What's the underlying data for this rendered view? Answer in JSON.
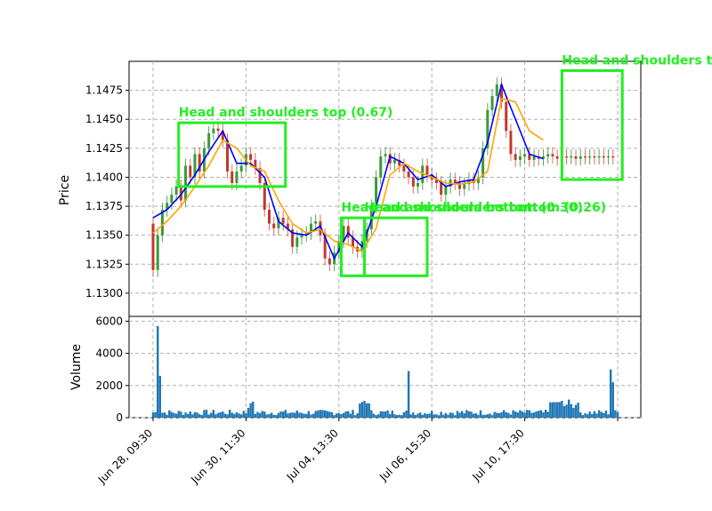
{
  "chart_data": [
    {
      "type": "candlestick",
      "ylabel": "Price",
      "ylim": [
        1.128,
        1.15
      ],
      "yticks": [
        "1.1300",
        "1.1325",
        "1.1350",
        "1.1375",
        "1.1400",
        "1.1425",
        "1.1450",
        "1.1475"
      ],
      "grid": true,
      "series": [
        {
          "name": "",
          "role": "close",
          "color": "#8a7a2a",
          "x": [
            0,
            1,
            2,
            3,
            4,
            5,
            6,
            7,
            8,
            9,
            10,
            11,
            12,
            13,
            14,
            15,
            16,
            17,
            18,
            19,
            20,
            21,
            22,
            23,
            24,
            25,
            26,
            27,
            28,
            29,
            30,
            31,
            32,
            33,
            34,
            35,
            36,
            37,
            38,
            39,
            40,
            41,
            42,
            43,
            44,
            45,
            46,
            47,
            48,
            49,
            50,
            51,
            52,
            53,
            54,
            55,
            56,
            57,
            58,
            59,
            60,
            61,
            62,
            63,
            64,
            65,
            66,
            67,
            68,
            69,
            70,
            71,
            72,
            73,
            74,
            75,
            76,
            77,
            78,
            79,
            80,
            81,
            82,
            83,
            84,
            85,
            86,
            87,
            88,
            89,
            90,
            91,
            92,
            93,
            94,
            95,
            96,
            97,
            98,
            99,
            100
          ],
          "values": [
            1.136,
            1.132,
            1.135,
            1.1372,
            1.1378,
            1.1385,
            1.1392,
            1.138,
            1.141,
            1.14,
            1.142,
            1.1405,
            1.1425,
            1.1438,
            1.1442,
            1.144,
            1.1432,
            1.1405,
            1.1395,
            1.1405,
            1.141,
            1.142,
            1.1415,
            1.1408,
            1.1395,
            1.1372,
            1.136,
            1.1356,
            1.1365,
            1.136,
            1.1355,
            1.134,
            1.1348,
            1.135,
            1.1352,
            1.136,
            1.1362,
            1.135,
            1.133,
            1.1325,
            1.1335,
            1.1345,
            1.1358,
            1.1348,
            1.134,
            1.1336,
            1.1345,
            1.1355,
            1.1375,
            1.14,
            1.1418,
            1.142,
            1.1412,
            1.1415,
            1.141,
            1.1405,
            1.14,
            1.1392,
            1.1395,
            1.141,
            1.1402,
            1.1398,
            1.1395,
            1.1385,
            1.1392,
            1.1398,
            1.1395,
            1.139,
            1.1394,
            1.1398,
            1.1395,
            1.14,
            1.1425,
            1.1458,
            1.147,
            1.148,
            1.1465,
            1.144,
            1.142,
            1.1415,
            1.1418,
            1.142,
            1.1415,
            1.1418,
            1.1416,
            1.1418,
            1.142,
            1.1418,
            1.1416,
            1.1418,
            1.1417,
            1.1418,
            1.1416,
            1.1418,
            1.1417,
            1.1418,
            1.1417,
            1.1418,
            1.1417,
            1.1418,
            1.1417
          ]
        },
        {
          "name": "",
          "role": "short-moving-average",
          "color": "#0000ff",
          "x": [
            0,
            3,
            6,
            9,
            12,
            15,
            18,
            21,
            24,
            27,
            30,
            33,
            36,
            39,
            42,
            45,
            48,
            51,
            54,
            57,
            60,
            63,
            66,
            69,
            72,
            75,
            78,
            81,
            84
          ],
          "values": [
            1.1365,
            1.1372,
            1.1385,
            1.1402,
            1.1422,
            1.144,
            1.1412,
            1.1412,
            1.14,
            1.1362,
            1.1352,
            1.135,
            1.1358,
            1.133,
            1.1352,
            1.134,
            1.1375,
            1.1418,
            1.1412,
            1.1398,
            1.1402,
            1.1392,
            1.1396,
            1.1398,
            1.143,
            1.148,
            1.145,
            1.142,
            1.1416
          ]
        },
        {
          "name": "",
          "role": "long-moving-average",
          "color": "#ffa500",
          "x": [
            0,
            3,
            6,
            9,
            12,
            15,
            18,
            21,
            24,
            27,
            30,
            33,
            36,
            39,
            42,
            45,
            48,
            51,
            54,
            57,
            60,
            63,
            66,
            69,
            72,
            75,
            78,
            81,
            84
          ],
          "values": [
            1.1352,
            1.1362,
            1.1375,
            1.1392,
            1.141,
            1.1432,
            1.1425,
            1.141,
            1.1405,
            1.138,
            1.136,
            1.1352,
            1.1355,
            1.1345,
            1.1342,
            1.1336,
            1.1356,
            1.1402,
            1.1412,
            1.1405,
            1.14,
            1.1395,
            1.1394,
            1.1396,
            1.1405,
            1.1468,
            1.1465,
            1.144,
            1.1432
          ]
        }
      ],
      "annotations": [
        {
          "label": "Head and shoulders top (0.67)",
          "x0": 5.5,
          "x1": 28.5,
          "y0": 1.1392,
          "y1": 1.1447,
          "color": "#22ee22"
        },
        {
          "label": "Head and shoulders bottom (0.30)",
          "x0": 40.5,
          "x1": 45.5,
          "y0": 1.1315,
          "y1": 1.1365,
          "color": "#22ee22"
        },
        {
          "label": "Head and shoulders bottom (0.26)",
          "x0": 45.5,
          "x1": 59.0,
          "y0": 1.1315,
          "y1": 1.1365,
          "color": "#22ee22"
        },
        {
          "label": "Head and shoulders t",
          "x0": 88.0,
          "x1": 101.0,
          "y0": 1.1398,
          "y1": 1.1492,
          "color": "#22ee22"
        }
      ]
    },
    {
      "type": "bar",
      "ylabel": "Volume",
      "ylim": [
        0,
        6300
      ],
      "yticks": [
        "0",
        "2000",
        "4000",
        "6000"
      ],
      "grid": true,
      "color": "#1f77b4",
      "spikes": [
        {
          "x": 1.0,
          "value": 5700
        },
        {
          "x": 1.5,
          "value": 2600
        },
        {
          "x": 55.0,
          "value": 2900
        },
        {
          "x": 98.5,
          "value": 3000
        },
        {
          "x": 99.0,
          "value": 2200
        }
      ]
    }
  ],
  "x_axis": {
    "tick_labels": [
      "Jun 28, 09:30",
      "Jun 30, 11:30",
      "Jul 04, 13:30",
      "Jul 06, 15:30",
      "Jul 10, 17:30",
      ""
    ]
  }
}
